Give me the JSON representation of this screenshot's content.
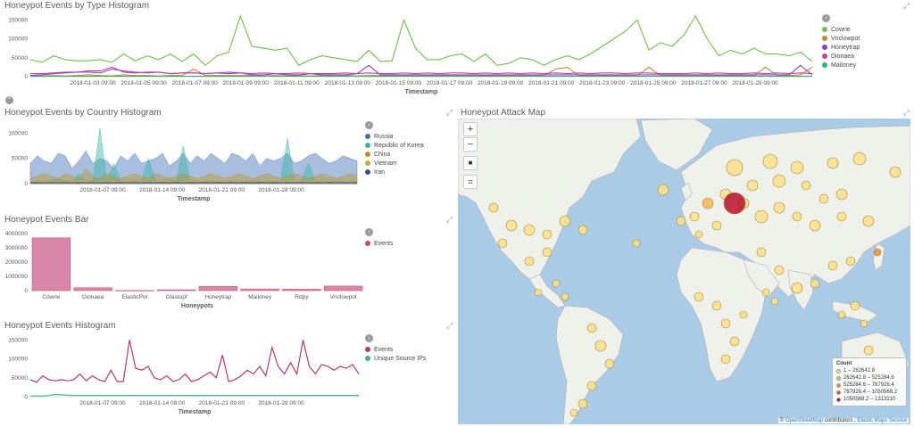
{
  "type_hist": {
    "title": "Honeypot Events by Type Histogram",
    "xlabel": "Timestamp",
    "yticks": [
      "150000",
      "100000",
      "50000",
      "0"
    ],
    "xticks": [
      "2018-01-03 09:00",
      "2018-01-05 09:00",
      "2018-01-07 09:00",
      "2018-01-09 09:00",
      "2018-01-11 09:00",
      "2018-01-13 09:00",
      "2018-01-15 09:00",
      "2018-01-17 09:00",
      "2018-01-19 09:00",
      "2018-01-21 09:00",
      "2018-01-23 09:00",
      "2018-01-25 09:00",
      "2018-01-27 09:00",
      "2018-01-29 09:00"
    ],
    "legend": [
      {
        "label": "Cowrie",
        "color": "#6cc04a"
      },
      {
        "label": "Vnclowpot",
        "color": "#c48a2b"
      },
      {
        "label": "Honeytrap",
        "color": "#8e3fc4"
      },
      {
        "label": "Dionaea",
        "color": "#c43f9b"
      },
      {
        "label": "Mailoney",
        "color": "#2bb673"
      }
    ]
  },
  "country_hist": {
    "title": "Honeypot Events by Country Histogram",
    "xlabel": "Timestamp",
    "yticks": [
      "100000",
      "50000",
      "0"
    ],
    "xticks": [
      "2018-01-07 09:00",
      "2018-01-14 09:00",
      "2018-01-21 09:00",
      "2018-01-28 09:00"
    ],
    "legend": [
      {
        "label": "Russia",
        "color": "#3e6fb5"
      },
      {
        "label": "Republic of Korea",
        "color": "#36b8a4"
      },
      {
        "label": "China",
        "color": "#b5952f"
      },
      {
        "label": "Vietnam",
        "color": "#c9a840"
      },
      {
        "label": "Iran",
        "color": "#3d4aa0"
      }
    ]
  },
  "bar": {
    "title": "Honeypot Events Bar",
    "xlabel": "Honeypots",
    "yticks": [
      "4000000",
      "3000000",
      "2000000",
      "1000000",
      "0"
    ],
    "legend": [
      {
        "label": "Events",
        "color": "#c4467b"
      }
    ]
  },
  "events_hist": {
    "title": "Honeypot Events Histogram",
    "xlabel": "Timestamp",
    "yticks": [
      "150000",
      "100000",
      "50000",
      "0"
    ],
    "xticks": [
      "2018-01-07 09:00",
      "2018-01-14 09:00",
      "2018-01-21 09:00",
      "2018-01-28 09:00"
    ],
    "legend": [
      {
        "label": "Events",
        "color": "#b53a6e"
      },
      {
        "label": "Unique Source IPs",
        "color": "#36b889"
      }
    ]
  },
  "map": {
    "title": "Honeypot Attack Map",
    "zoom_in": "+",
    "zoom_out": "−",
    "legend_title": "Count",
    "legend": [
      {
        "label": "1 – 262642.8",
        "color": "#fbe08a"
      },
      {
        "label": "262642.8 – 525284.6",
        "color": "#f5b451"
      },
      {
        "label": "525284.6 – 787926.4",
        "color": "#ec8a3c"
      },
      {
        "label": "787926.4 – 1050568.2",
        "color": "#dc4b30"
      },
      {
        "label": "1050568.2 – 1313210",
        "color": "#b8102c"
      }
    ],
    "attrib_prefix": "© ",
    "attrib_osm": "OpenStreetMap",
    "attrib_mid": " contributors , ",
    "attrib_ems": "Elastic Maps Service"
  },
  "chart_data": [
    {
      "type": "line",
      "title": "Honeypot Events by Type Histogram",
      "xlabel": "Timestamp",
      "ylim": [
        0,
        160000
      ],
      "series": [
        {
          "name": "Cowrie",
          "values": [
            45000,
            38000,
            55000,
            45000,
            42000,
            42000,
            45000,
            38000,
            60000,
            42000,
            55000,
            45000,
            60000,
            40000,
            60000,
            30000,
            55000,
            65000,
            160000,
            80000,
            75000,
            70000,
            75000,
            30000,
            45000,
            55000,
            50000,
            45000,
            40000,
            70000,
            40000,
            42000,
            150000,
            75000,
            45000,
            45000,
            55000,
            60000,
            40000,
            60000,
            30000,
            35000,
            50000,
            45000,
            30000,
            45000,
            55000,
            45000,
            60000,
            80000,
            100000,
            120000,
            150000,
            70000,
            90000,
            80000,
            110000,
            160000,
            100000,
            55000,
            70000,
            60000,
            75000,
            60000,
            60000,
            55000,
            65000,
            40000
          ]
        },
        {
          "name": "Vnclowpot",
          "values": [
            2000,
            2000,
            3000,
            2000,
            3000,
            5000,
            3000,
            2000,
            5000,
            3000,
            3000,
            2000,
            3000,
            3000,
            20000,
            3000,
            3000,
            3000,
            3000,
            3000,
            2000,
            3000,
            2000,
            3000,
            2000,
            3000,
            2000,
            3000,
            2000,
            3000,
            3000,
            2000,
            3000,
            2000,
            3000,
            3000,
            2000,
            3000,
            2000,
            3000,
            3000,
            3000,
            3000,
            2000,
            3000,
            20000,
            25000,
            3000,
            3000,
            3000,
            3000,
            3000,
            3000,
            25000,
            3000,
            3000,
            3000,
            3000,
            3000,
            3000,
            3000,
            3000,
            3000,
            25000,
            3000,
            3000,
            5000,
            25000
          ]
        },
        {
          "name": "Honeytrap",
          "values": [
            3000,
            5000,
            8000,
            10000,
            12000,
            15000,
            15000,
            25000,
            12000,
            10000,
            12000,
            12000,
            8000,
            10000,
            10000,
            8000,
            10000,
            8000,
            10000,
            5000,
            5000,
            8000,
            5000,
            5000,
            8000,
            5000,
            5000,
            5000,
            8000,
            30000,
            5000,
            5000,
            5000,
            5000,
            5000,
            5000,
            5000,
            5000,
            5000,
            5000,
            5000,
            5000,
            5000,
            5000,
            5000,
            5000,
            5000,
            5000,
            5000,
            5000,
            5000,
            5000,
            5000,
            5000,
            5000,
            5000,
            5000,
            5000,
            5000,
            5000,
            5000,
            5000,
            5000,
            5000,
            5000,
            5000,
            30000,
            5000
          ]
        },
        {
          "name": "Dionaea",
          "values": [
            8000,
            8000,
            10000,
            12000,
            12000,
            12000,
            10000,
            20000,
            15000,
            12000,
            10000,
            12000,
            8000,
            10000,
            10000,
            8000,
            10000,
            12000,
            10000,
            8000,
            10000,
            8000,
            8000,
            10000,
            8000,
            8000,
            8000,
            10000,
            8000,
            10000,
            8000,
            8000,
            10000,
            8000,
            10000,
            8000,
            10000,
            10000,
            8000,
            10000,
            8000,
            10000,
            8000,
            10000,
            8000,
            10000,
            8000,
            10000,
            8000,
            10000,
            10000,
            8000,
            10000,
            10000,
            8000,
            8000,
            8000,
            10000,
            8000,
            10000,
            8000,
            8000,
            10000,
            8000,
            10000,
            8000,
            10000,
            8000
          ]
        },
        {
          "name": "Mailoney",
          "values": [
            1000,
            1000,
            1000,
            1000,
            1000,
            1000,
            1000,
            1000,
            1000,
            1000,
            1000,
            1000,
            1000,
            1000,
            1000,
            1000,
            1000,
            1000,
            1000,
            1000,
            1000,
            1000,
            1000,
            1000,
            1000,
            1000,
            1000,
            1000,
            1000,
            1000,
            1000,
            1000,
            1000,
            1000,
            1000,
            1000,
            1000,
            1000,
            1000,
            1000,
            1000,
            1000,
            1000,
            1000,
            1000,
            1000,
            1000,
            1000,
            1000,
            1000,
            1000,
            1000,
            1000,
            1000,
            1000,
            1000,
            1000,
            1000,
            1000,
            1000,
            1000,
            1000,
            1000,
            1000,
            1000,
            1000,
            1000,
            1000
          ]
        }
      ]
    },
    {
      "type": "area",
      "title": "Honeypot Events by Country Histogram",
      "xlabel": "Timestamp",
      "ylim": [
        0,
        120000
      ],
      "series": [
        {
          "name": "Russia",
          "values": [
            40000,
            55000,
            45000,
            40000,
            60000,
            55000,
            30000,
            45000,
            65000,
            40000,
            50000,
            45000,
            30000,
            55000,
            45000,
            60000,
            40000,
            45000,
            50000,
            60000,
            35000,
            45000,
            60000,
            40000,
            55000,
            45000,
            60000,
            50000,
            40000,
            60000,
            55000,
            45000,
            60000,
            35000,
            50000,
            45000,
            50000,
            60000,
            40000,
            45000,
            55000,
            60000,
            50000,
            40000,
            45000,
            55000,
            50000,
            45000
          ]
        },
        {
          "name": "Republic of Korea",
          "values": [
            5000,
            5000,
            5000,
            5000,
            10000,
            5000,
            5000,
            20000,
            5000,
            5000,
            110000,
            5000,
            40000,
            5000,
            5000,
            5000,
            5000,
            50000,
            5000,
            5000,
            10000,
            5000,
            75000,
            5000,
            5000,
            5000,
            5000,
            5000,
            5000,
            5000,
            5000,
            5000,
            5000,
            5000,
            5000,
            5000,
            5000,
            90000,
            5000,
            5000,
            40000,
            5000,
            5000,
            5000,
            5000,
            5000,
            5000,
            5000
          ]
        },
        {
          "name": "China",
          "values": [
            10000,
            15000,
            20000,
            15000,
            10000,
            20000,
            15000,
            10000,
            30000,
            15000,
            10000,
            20000,
            15000,
            10000,
            15000,
            20000,
            15000,
            10000,
            20000,
            15000,
            10000,
            15000,
            20000,
            15000,
            10000,
            15000,
            20000,
            15000,
            10000,
            15000,
            20000,
            15000,
            10000,
            15000,
            20000,
            15000,
            10000,
            15000,
            20000,
            15000,
            10000,
            15000,
            20000,
            15000,
            10000,
            15000,
            20000,
            15000
          ]
        },
        {
          "name": "Vietnam",
          "values": [
            5000,
            5000,
            8000,
            5000,
            5000,
            8000,
            5000,
            5000,
            8000,
            5000,
            5000,
            8000,
            5000,
            5000,
            8000,
            5000,
            5000,
            8000,
            5000,
            5000,
            8000,
            5000,
            5000,
            8000,
            5000,
            5000,
            8000,
            5000,
            5000,
            8000,
            5000,
            5000,
            8000,
            5000,
            5000,
            8000,
            5000,
            5000,
            8000,
            5000,
            5000,
            8000,
            5000,
            5000,
            8000,
            5000,
            5000,
            8000
          ]
        },
        {
          "name": "Iran",
          "values": [
            2000,
            3000,
            2000,
            3000,
            2000,
            3000,
            2000,
            3000,
            2000,
            3000,
            2000,
            3000,
            2000,
            3000,
            2000,
            3000,
            2000,
            3000,
            2000,
            3000,
            2000,
            3000,
            2000,
            3000,
            2000,
            3000,
            2000,
            3000,
            2000,
            3000,
            2000,
            3000,
            2000,
            3000,
            2000,
            3000,
            2000,
            3000,
            2000,
            3000,
            2000,
            3000,
            2000,
            3000,
            2000,
            3000,
            2000,
            3000
          ]
        }
      ]
    },
    {
      "type": "bar",
      "title": "Honeypot Events Bar",
      "xlabel": "Honeypots",
      "ylim": [
        0,
        4000000
      ],
      "categories": [
        "Cowrie",
        "Dionaea",
        "ElasticPot",
        "Glastopf",
        "Honeytrap",
        "Mailoney",
        "Rdpy",
        "Vnclowpot"
      ],
      "series": [
        {
          "name": "Events",
          "values": [
            3700000,
            200000,
            10000,
            60000,
            300000,
            120000,
            100000,
            320000
          ]
        }
      ]
    },
    {
      "type": "line",
      "title": "Honeypot Events Histogram",
      "xlabel": "Timestamp",
      "ylim": [
        0,
        160000
      ],
      "series": [
        {
          "name": "Events",
          "values": [
            45000,
            38000,
            55000,
            45000,
            42000,
            45000,
            42000,
            45000,
            60000,
            42000,
            55000,
            45000,
            40000,
            70000,
            40000,
            40000,
            150000,
            75000,
            70000,
            80000,
            50000,
            45000,
            55000,
            40000,
            45000,
            60000,
            40000,
            45000,
            55000,
            65000,
            50000,
            110000,
            40000,
            45000,
            55000,
            70000,
            60000,
            80000,
            55000,
            130000,
            80000,
            60000,
            90000,
            60000,
            150000,
            80000,
            60000,
            85000,
            80000,
            70000,
            80000,
            75000,
            85000,
            60000
          ]
        },
        {
          "name": "Unique Source IPs",
          "values": [
            2000,
            2000,
            2000,
            3000,
            6000,
            5000,
            4000,
            3000,
            3000,
            3000,
            3000,
            3000,
            3000,
            3000,
            3000,
            3000,
            3000,
            3000,
            3000,
            3000,
            3000,
            3000,
            3000,
            3000,
            3000,
            3000,
            3000,
            3000,
            3000,
            3000,
            3000,
            3000,
            3000,
            3000,
            3000,
            3000,
            3000,
            3000,
            3000,
            3000,
            3000,
            3000,
            3000,
            3000,
            3000,
            3000,
            3000,
            3000,
            3000,
            3000,
            3000,
            3000,
            3000,
            3000
          ]
        }
      ]
    }
  ]
}
